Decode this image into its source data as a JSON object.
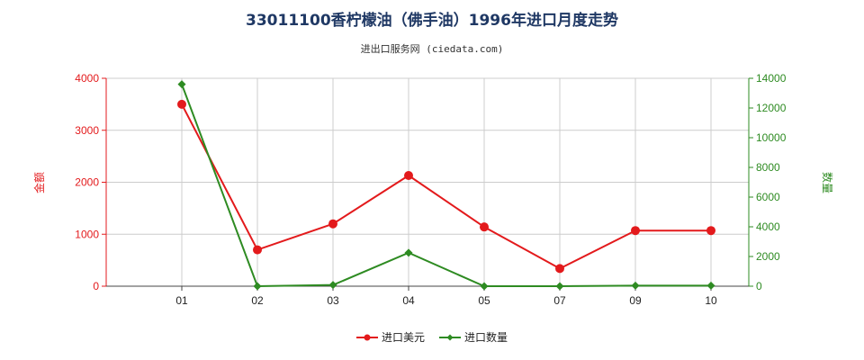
{
  "title": "33011100香柠檬油（佛手油）1996年进口月度走势",
  "subtitle": "进出口服务网 (ciedata.com)",
  "colors": {
    "left_axis": "#e31a1c",
    "right_axis": "#2e8b22",
    "grid": "#cccccc",
    "axis": "#444444"
  },
  "chart_data": {
    "type": "line",
    "categories": [
      "01",
      "02",
      "03",
      "04",
      "05",
      "07",
      "09",
      "10"
    ],
    "y_left": {
      "label": "金额",
      "ylim": [
        0,
        4000
      ],
      "ticks": [
        "0",
        "1000",
        "2000",
        "3000",
        "4000"
      ]
    },
    "y_right": {
      "label": "数量",
      "ylim": [
        0,
        14000
      ],
      "ticks": [
        "0",
        "2000",
        "4000",
        "6000",
        "8000",
        "10000",
        "12000",
        "14000"
      ]
    },
    "series": [
      {
        "name": "进口美元",
        "axis": "left",
        "color": "#e31a1c",
        "marker": "circle",
        "values": [
          3500,
          700,
          1200,
          2130,
          1140,
          340,
          1070,
          1070
        ]
      },
      {
        "name": "进口数量",
        "axis": "right",
        "color": "#2e8b22",
        "marker": "diamond",
        "values": [
          13600,
          0,
          80,
          2250,
          0,
          0,
          40,
          40
        ]
      }
    ],
    "grid": true,
    "legend_position": "bottom-center"
  }
}
